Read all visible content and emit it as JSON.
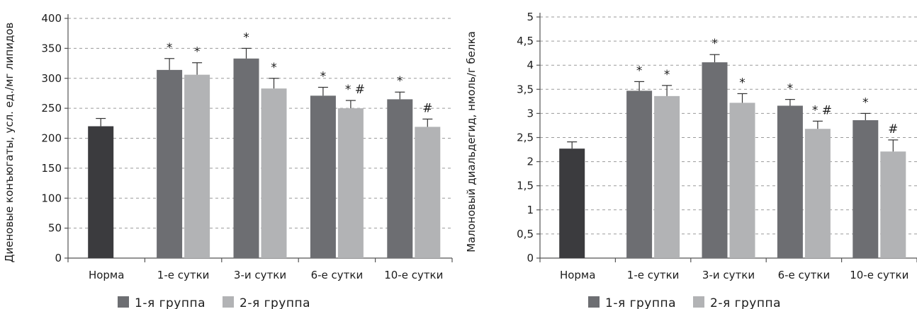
{
  "colors": {
    "norm": "#3b3b3e",
    "group1": "#6d6e72",
    "group2": "#b2b3b5"
  },
  "legend": {
    "group1": "1-я группа",
    "group2": "2-я группа"
  },
  "chart_data": [
    {
      "type": "bar",
      "ylabel": "Диеновые конъюгаты, усл. ед./мг липидов",
      "ylim": [
        0,
        400
      ],
      "yticks": [
        "0",
        "50",
        "100",
        "150",
        "200",
        "250",
        "300",
        "350",
        "400"
      ],
      "grid": "dashed horizontal",
      "legend_position": "bottom-left",
      "categories": [
        "Норма",
        "1-е сутки",
        "3-и сутки",
        "6-е сутки",
        "10-е сутки"
      ],
      "norm": {
        "value": 220,
        "error": 13
      },
      "series": [
        {
          "name": "1-я группа",
          "values": [
            null,
            314,
            333,
            271,
            265
          ],
          "errors": [
            null,
            19,
            17,
            14,
            12
          ],
          "annotations": [
            "",
            "*",
            "*",
            "*",
            "*"
          ]
        },
        {
          "name": "2-я группа",
          "values": [
            null,
            306,
            283,
            250,
            219
          ],
          "errors": [
            null,
            20,
            17,
            13,
            13
          ],
          "annotations": [
            "",
            "*",
            "*",
            "* #",
            "#"
          ]
        }
      ]
    },
    {
      "type": "bar",
      "ylabel": "Малоновый диальдегид, нмоль/г белка",
      "ylim": [
        0,
        5
      ],
      "yticks": [
        "0",
        "0,5",
        "1",
        "1,5",
        "2",
        "2,5",
        "3",
        "3,5",
        "4",
        "4,5",
        "5"
      ],
      "grid": "dashed horizontal",
      "legend_position": "bottom-left",
      "categories": [
        "Норма",
        "1-е сутки",
        "3-и сутки",
        "6-е сутки",
        "10-е сутки"
      ],
      "norm": {
        "value": 2.27,
        "error": 0.14
      },
      "series": [
        {
          "name": "1-я группа",
          "values": [
            null,
            3.47,
            4.06,
            3.16,
            2.86
          ],
          "errors": [
            null,
            0.19,
            0.16,
            0.13,
            0.14
          ],
          "annotations": [
            "",
            "*",
            "*",
            "*",
            "*"
          ]
        },
        {
          "name": "2-я группа",
          "values": [
            null,
            3.36,
            3.22,
            2.68,
            2.21
          ],
          "errors": [
            null,
            0.22,
            0.19,
            0.16,
            0.24
          ],
          "annotations": [
            "",
            "*",
            "*",
            "* #",
            "#"
          ]
        }
      ]
    }
  ]
}
